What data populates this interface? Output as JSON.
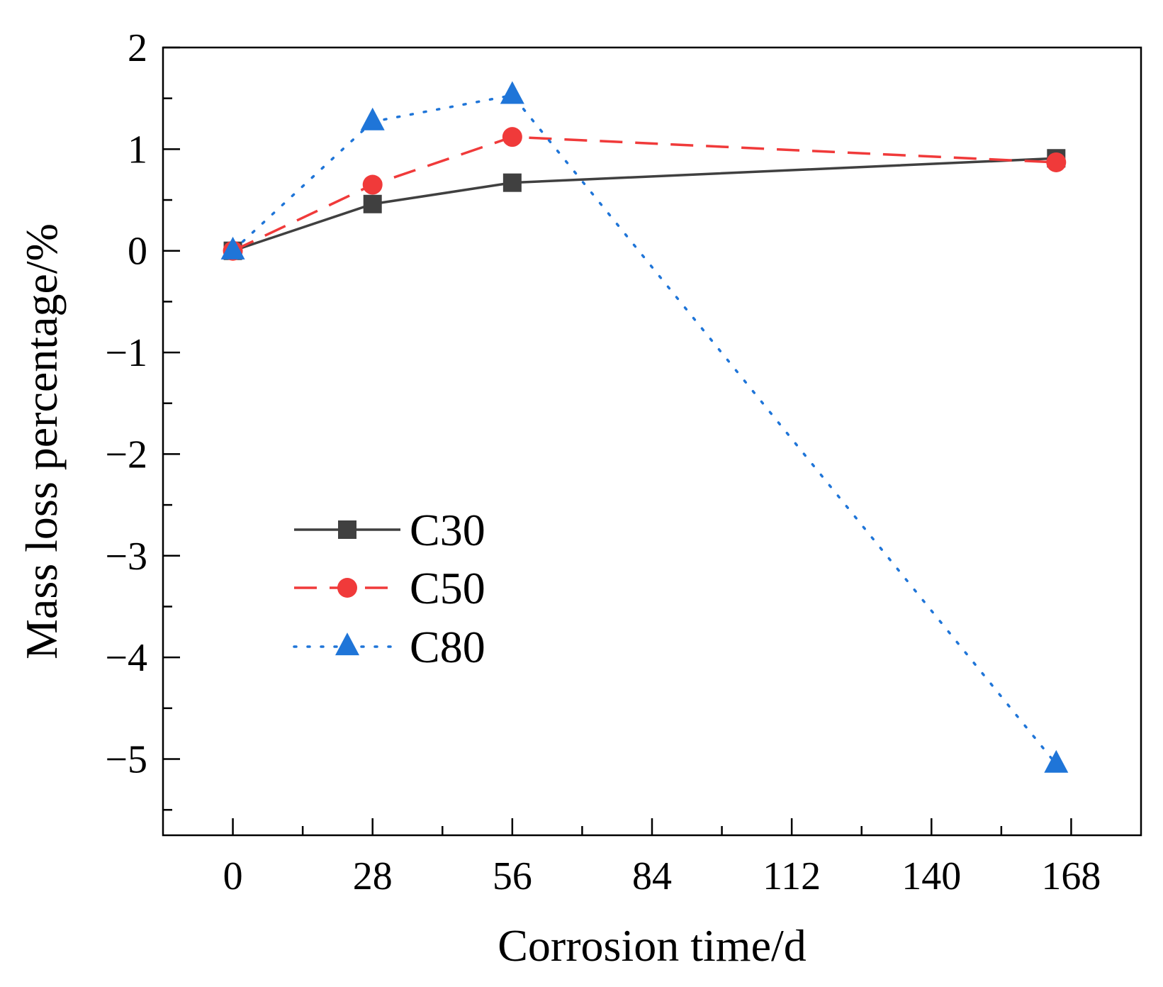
{
  "chart_data": {
    "type": "line",
    "title": "",
    "xlabel": "Corrosion time/d",
    "ylabel": "Mass loss percentage/%",
    "x_ticks": [
      0,
      28,
      56,
      84,
      112,
      140,
      168
    ],
    "x_tick_labels": [
      "0",
      "28",
      "56",
      "84",
      "112",
      "140",
      "168"
    ],
    "y_ticks": [
      2,
      1,
      0,
      -1,
      -2,
      -3,
      -4,
      -5
    ],
    "y_tick_labels": [
      "2",
      "1",
      "0",
      "−1",
      "−2",
      "−3",
      "−4",
      "−5"
    ],
    "xlim": [
      -14,
      182
    ],
    "ylim": [
      -5.75,
      2
    ],
    "grid": false,
    "legend_position": "lower-left",
    "series": [
      {
        "name": "C30",
        "color": "#404040",
        "line_style": "solid",
        "marker": "square",
        "x": [
          0,
          28,
          56,
          165
        ],
        "y": [
          0.0,
          0.46,
          0.67,
          0.91
        ]
      },
      {
        "name": "C50",
        "color": "#f03a3a",
        "line_style": "dashed",
        "marker": "circle",
        "x": [
          0,
          28,
          56,
          165
        ],
        "y": [
          0.0,
          0.65,
          1.12,
          0.87
        ]
      },
      {
        "name": "C80",
        "color": "#1f75d8",
        "line_style": "dotted",
        "marker": "triangle",
        "x": [
          0,
          28,
          56,
          165
        ],
        "y": [
          0.0,
          1.27,
          1.53,
          -5.05
        ]
      }
    ]
  }
}
